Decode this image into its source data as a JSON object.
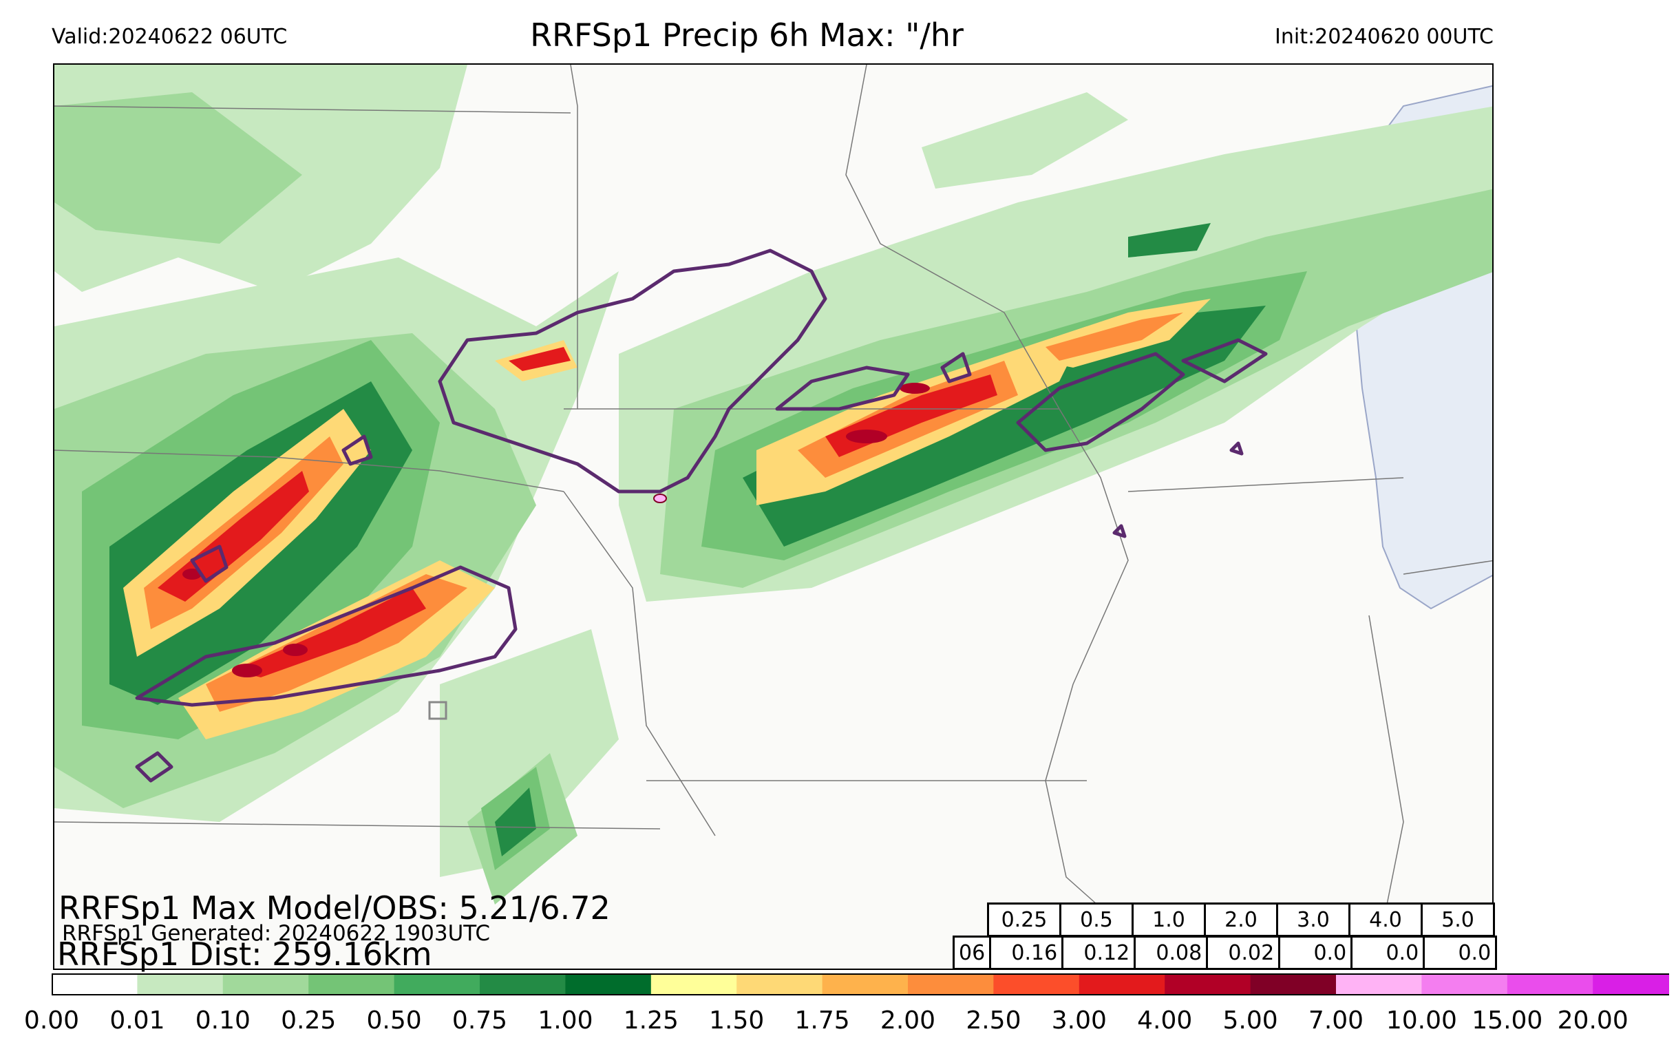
{
  "header": {
    "valid": "Valid:20240622 06UTC",
    "title": "RRFSp1 Precip 6h Max: \"/hr",
    "init": "Init:20240620 00UTC"
  },
  "overlay": {
    "max_model_obs": "RRFSp1 Max Model/OBS: 5.21/6.72",
    "generated": "RRFSp1 Generated: 20240622 1903UTC",
    "dist": "RRFSp1 Dist: 259.16km"
  },
  "stats_table": {
    "thresholds": [
      "0.25",
      "0.5",
      "1.0",
      "2.0",
      "3.0",
      "4.0",
      "5.0"
    ],
    "hour": "06",
    "scores": [
      "0.16",
      "0.12",
      "0.08",
      "0.02",
      "0.0",
      "0.0",
      "0.0"
    ]
  },
  "colorbar": {
    "ticks": [
      "0.00",
      "0.01",
      "0.10",
      "0.25",
      "0.50",
      "0.75",
      "1.00",
      "1.25",
      "1.50",
      "1.75",
      "2.00",
      "2.50",
      "3.00",
      "4.00",
      "5.00",
      "7.00",
      "10.00",
      "15.00",
      "20.00"
    ],
    "colors": [
      "#ffffff",
      "#c7e9c0",
      "#a1d99b",
      "#74c476",
      "#41ab5d",
      "#238b45",
      "#006d2c",
      "#ffff99",
      "#fed976",
      "#feb24c",
      "#fd8d3c",
      "#fc4e2a",
      "#e31a1c",
      "#b10026",
      "#800026",
      "#ffb3f5",
      "#f47ef0",
      "#ea4dec",
      "#d91fe6",
      "#9a12d9"
    ],
    "extend": "max"
  },
  "map_colors": {
    "light_green": "#c7e9c0",
    "mid_green": "#a1d99b",
    "green": "#74c476",
    "dark_green": "#238b45",
    "yellow": "#fed976",
    "orange": "#fd8d3c",
    "red": "#e31a1c",
    "dark_red": "#b10026",
    "obs_contour": "#5b2a6e",
    "lake": "#e6ecf5"
  }
}
